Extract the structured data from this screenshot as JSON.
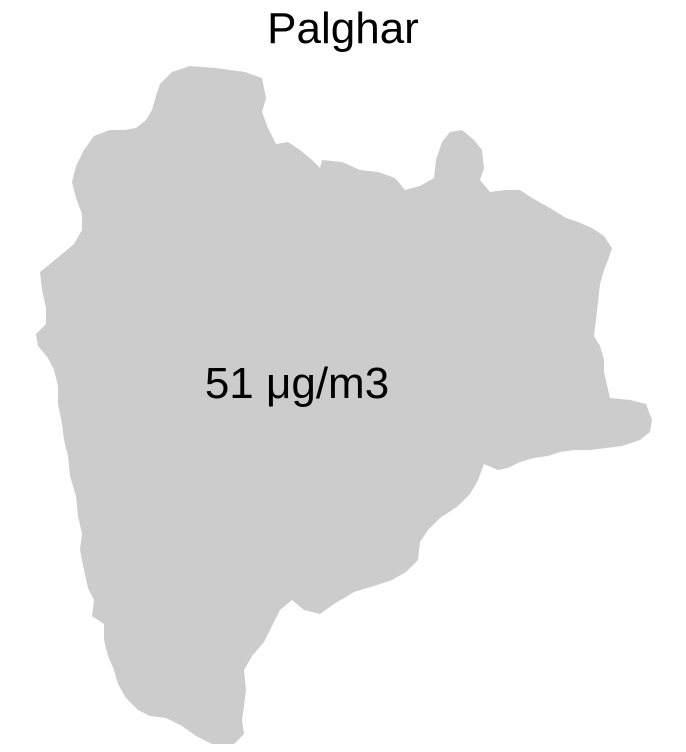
{
  "map": {
    "title": "Palghar",
    "region_label": "51 μg/m3",
    "region_fill": "#cccccc",
    "background": "#ffffff"
  }
}
